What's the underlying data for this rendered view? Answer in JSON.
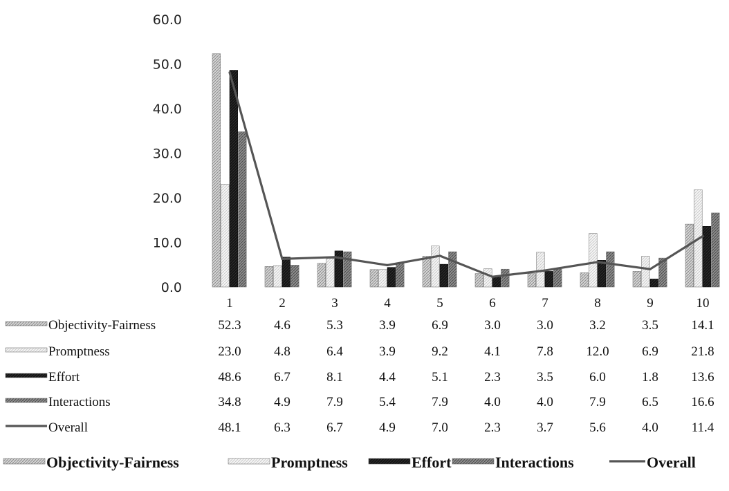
{
  "chart_data": {
    "type": "bar",
    "title": "",
    "xlabel": "",
    "ylabel": "",
    "ylim": [
      0,
      60
    ],
    "yticks": [
      "0.0",
      "10.0",
      "20.0",
      "30.0",
      "40.0",
      "50.0",
      "60.0"
    ],
    "categories": [
      "1",
      "2",
      "3",
      "4",
      "5",
      "6",
      "7",
      "8",
      "9",
      "10"
    ],
    "grid": false,
    "legend_position": "bottom",
    "series": [
      {
        "name": "Objectivity-Fairness",
        "kind": "bar",
        "color": "#c9c9c9",
        "values": [
          52.3,
          4.6,
          5.3,
          3.9,
          6.9,
          3.0,
          3.0,
          3.2,
          3.5,
          14.1
        ],
        "labels": [
          "52.3",
          "4.6",
          "5.3",
          "3.9",
          "6.9",
          "3.0",
          "3.0",
          "3.2",
          "3.5",
          "14.1"
        ]
      },
      {
        "name": "Promptness",
        "kind": "bar",
        "color": "#eeeeee",
        "values": [
          23.0,
          4.8,
          6.4,
          3.9,
          9.2,
          4.1,
          7.8,
          12.0,
          6.9,
          21.8
        ],
        "labels": [
          "23.0",
          "4.8",
          "6.4",
          "3.9",
          "9.2",
          "4.1",
          "7.8",
          "12.0",
          "6.9",
          "21.8"
        ]
      },
      {
        "name": "Effort",
        "kind": "bar",
        "color": "#151515",
        "values": [
          48.6,
          6.7,
          8.1,
          4.4,
          5.1,
          2.3,
          3.5,
          6.0,
          1.8,
          13.6
        ],
        "labels": [
          "48.6",
          "6.7",
          "8.1",
          "4.4",
          "5.1",
          "2.3",
          "3.5",
          "6.0",
          "1.8",
          "13.6"
        ]
      },
      {
        "name": "Interactions",
        "kind": "bar",
        "color": "#7a7a7a",
        "values": [
          34.8,
          4.9,
          7.9,
          5.4,
          7.9,
          4.0,
          4.0,
          7.9,
          6.5,
          16.6
        ],
        "labels": [
          "34.8",
          "4.9",
          "7.9",
          "5.4",
          "7.9",
          "4.0",
          "4.0",
          "7.9",
          "6.5",
          "16.6"
        ]
      },
      {
        "name": "Overall",
        "kind": "line",
        "color": "#555555",
        "values": [
          48.1,
          6.3,
          6.7,
          4.9,
          7.0,
          2.3,
          3.7,
          5.6,
          4.0,
          11.4
        ],
        "labels": [
          "48.1",
          "6.3",
          "6.7",
          "4.9",
          "7.0",
          "2.3",
          "3.7",
          "5.6",
          "4.0",
          "11.4"
        ]
      }
    ]
  }
}
